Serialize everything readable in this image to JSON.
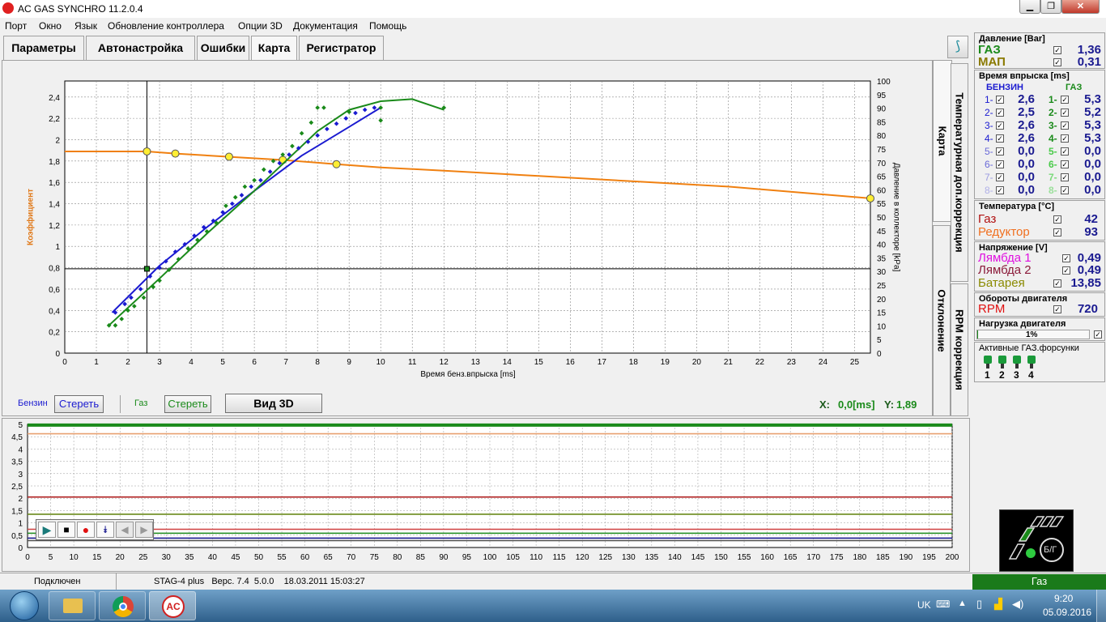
{
  "window": {
    "title": "AC GAS SYNCHRO  11.2.0.4"
  },
  "menu": [
    "Порт",
    "Окно",
    "Язык",
    "Обновление контроллера",
    "Опции 3D",
    "Документация",
    "Помощь"
  ],
  "tabs": [
    "Параметры",
    "Автонастройка",
    "Ошибки",
    "Карта",
    "Регистратор"
  ],
  "active_tab": "Карта",
  "vtabs": [
    "Карта",
    "Температурная доп.коррекция",
    "Отклонение",
    "RPM коррекция"
  ],
  "map_chart": {
    "left_ylabel": "Коэффициент",
    "right_ylabel": "Давление в коллекторе [kPa]",
    "xlabel": "Время бенз.впрыска [ms]",
    "x_ticks": [
      "0",
      "1",
      "2",
      "3",
      "4",
      "5",
      "6",
      "7",
      "8",
      "9",
      "10",
      "11",
      "12",
      "13",
      "14",
      "15",
      "16",
      "17",
      "18",
      "19",
      "20",
      "21",
      "22",
      "23",
      "24",
      "25"
    ],
    "y_ticks": [
      "0",
      "0,2",
      "0,4",
      "0,6",
      "0,8",
      "1",
      "1,2",
      "1,4",
      "1,6",
      "1,8",
      "2",
      "2,2",
      "2,4"
    ],
    "y2_ticks": [
      "0",
      "5",
      "10",
      "15",
      "20",
      "25",
      "30",
      "35",
      "40",
      "45",
      "50",
      "55",
      "60",
      "65",
      "70",
      "75",
      "80",
      "85",
      "90",
      "95",
      "100"
    ]
  },
  "chart_data": [
    {
      "type": "line",
      "xlabel": "Время бенз.впрыска [ms]",
      "ylabel": "Коэффициент",
      "y2label": "Давление в коллекторе [kPa]",
      "xlim": [
        0,
        25.5
      ],
      "ylim": [
        0,
        2.55
      ],
      "y2lim": [
        0,
        100
      ],
      "grid": true,
      "crosshair": {
        "x": 2.6,
        "y": 0.79
      },
      "series": [
        {
          "role": "coefficient",
          "color": "#f08010",
          "points": [
            [
              0,
              1.89
            ],
            [
              2.6,
              1.89
            ],
            [
              3.5,
              1.87
            ],
            [
              5.2,
              1.84
            ],
            [
              6.9,
              1.81
            ],
            [
              8.6,
              1.77
            ],
            [
              10,
              1.74
            ],
            [
              12,
              1.71
            ],
            [
              15,
              1.66
            ],
            [
              18,
              1.61
            ],
            [
              21,
              1.56
            ],
            [
              25.5,
              1.45
            ]
          ],
          "markers": [
            [
              2.6,
              1.89
            ],
            [
              3.5,
              1.87
            ],
            [
              5.2,
              1.84
            ],
            [
              6.9,
              1.81
            ],
            [
              8.6,
              1.77
            ],
            [
              25.5,
              1.45
            ]
          ]
        },
        {
          "role": "petrol-fit",
          "color": "#1a1ad0",
          "points": [
            [
              1.5,
              0.38
            ],
            [
              3,
              0.82
            ],
            [
              4.5,
              1.18
            ],
            [
              6,
              1.52
            ],
            [
              7.5,
              1.85
            ],
            [
              9,
              2.12
            ],
            [
              10,
              2.3
            ]
          ]
        },
        {
          "role": "gas-fit",
          "color": "#1a8a1a",
          "points": [
            [
              1.4,
              0.26
            ],
            [
              3,
              0.7
            ],
            [
              4.5,
              1.12
            ],
            [
              6,
              1.52
            ],
            [
              7,
              1.8
            ],
            [
              8,
              2.08
            ],
            [
              9,
              2.28
            ],
            [
              10,
              2.36
            ],
            [
              11,
              2.38
            ],
            [
              12,
              2.28
            ]
          ]
        },
        {
          "role": "petrol-points",
          "color": "#1a1ad0",
          "points": [
            [
              1.6,
              0.38
            ],
            [
              1.9,
              0.46
            ],
            [
              2.1,
              0.52
            ],
            [
              2.4,
              0.6
            ],
            [
              2.7,
              0.72
            ],
            [
              3,
              0.8
            ],
            [
              3.2,
              0.86
            ],
            [
              3.5,
              0.95
            ],
            [
              3.8,
              1.02
            ],
            [
              4.1,
              1.1
            ],
            [
              4.4,
              1.18
            ],
            [
              4.7,
              1.24
            ],
            [
              5,
              1.32
            ],
            [
              5.3,
              1.4
            ],
            [
              5.6,
              1.48
            ],
            [
              5.9,
              1.56
            ],
            [
              6.2,
              1.62
            ],
            [
              6.5,
              1.7
            ],
            [
              6.8,
              1.78
            ],
            [
              7.1,
              1.86
            ],
            [
              7.4,
              1.92
            ],
            [
              7.7,
              1.98
            ],
            [
              8,
              2.04
            ],
            [
              8.3,
              2.1
            ],
            [
              8.6,
              2.15
            ],
            [
              8.9,
              2.2
            ],
            [
              9.2,
              2.25
            ],
            [
              9.5,
              2.28
            ],
            [
              9.8,
              2.3
            ]
          ]
        },
        {
          "role": "gas-points",
          "color": "#1a8a1a",
          "points": [
            [
              1.4,
              0.26
            ],
            [
              1.6,
              0.26
            ],
            [
              1.8,
              0.32
            ],
            [
              2,
              0.4
            ],
            [
              2.2,
              0.44
            ],
            [
              2.5,
              0.52
            ],
            [
              2.8,
              0.62
            ],
            [
              3,
              0.68
            ],
            [
              3.3,
              0.78
            ],
            [
              3.6,
              0.88
            ],
            [
              3.9,
              0.98
            ],
            [
              4.2,
              1.06
            ],
            [
              4.5,
              1.14
            ],
            [
              4.8,
              1.22
            ],
            [
              5.1,
              1.38
            ],
            [
              5.4,
              1.46
            ],
            [
              5.7,
              1.56
            ],
            [
              6,
              1.62
            ],
            [
              6.3,
              1.72
            ],
            [
              6.6,
              1.8
            ],
            [
              6.9,
              1.86
            ],
            [
              7.2,
              1.94
            ],
            [
              7.5,
              2.06
            ],
            [
              7.8,
              2.16
            ],
            [
              8,
              2.3
            ],
            [
              8.2,
              2.3
            ],
            [
              9,
              2.26
            ],
            [
              10,
              2.3
            ],
            [
              10,
              2.18
            ],
            [
              12,
              2.3
            ]
          ]
        }
      ]
    },
    {
      "type": "line",
      "x_ticks": [
        "0",
        "5",
        "10",
        "15",
        "20",
        "25",
        "30",
        "35",
        "40",
        "45",
        "50",
        "55",
        "60",
        "65",
        "70",
        "75",
        "80",
        "85",
        "90",
        "95",
        "100",
        "105",
        "110",
        "115",
        "120",
        "125",
        "130",
        "135",
        "140",
        "145",
        "150",
        "155",
        "160",
        "165",
        "170",
        "175",
        "180",
        "185",
        "190",
        "195",
        "200"
      ],
      "y_ticks": [
        "0",
        "0,5",
        "1",
        "1,5",
        "2",
        "2,5",
        "3",
        "3,5",
        "4",
        "4,5",
        "5"
      ],
      "xlim": [
        0,
        200
      ],
      "ylim": [
        0,
        5
      ],
      "grid": true,
      "series": [
        {
          "color": "#1a8a1a",
          "values_level": 4.97
        },
        {
          "color": "#e8a070",
          "values_level": 4.62
        },
        {
          "color": "#b02020",
          "values_level": 2.05
        },
        {
          "color": "#6a8a1a",
          "values_level": 1.35
        },
        {
          "color": "#d04040",
          "values_level": 0.74
        },
        {
          "color": "#1a8a1a",
          "values_level": 0.58
        },
        {
          "color": "#1a1a90",
          "values_level": 0.38
        },
        {
          "color": "#505050",
          "values_level": 0.28
        }
      ]
    }
  ],
  "controls": {
    "petrol_label": "Бензин",
    "erase1": "Стереть",
    "gas_label": "Газ",
    "erase2": "Стереть",
    "view3d": "Вид 3D",
    "xy_x_label": "X:",
    "xy_x_value": "0,0[ms]",
    "xy_y_label": "Y:",
    "xy_y_value": "1,89"
  },
  "pressure": {
    "header": "Давление [Bar]",
    "gas_label": "ГАЗ",
    "gas_value": "1,36",
    "map_label": "МАП",
    "map_value": "0,31",
    "gas_color": "#1a8a1a",
    "map_color": "#8a7a00"
  },
  "injection": {
    "header": "Время впрыска [ms]",
    "petrol_header": "БЕНЗИН",
    "gas_header": "ГАЗ",
    "rows": [
      {
        "n": "1-",
        "petrol": "2,6",
        "gn": "1-",
        "gas": "5,3"
      },
      {
        "n": "2-",
        "petrol": "2,5",
        "gn": "2-",
        "gas": "5,2"
      },
      {
        "n": "3-",
        "petrol": "2,6",
        "gn": "3-",
        "gas": "5,3"
      },
      {
        "n": "4-",
        "petrol": "2,6",
        "gn": "4-",
        "gas": "5,3"
      },
      {
        "n": "5-",
        "petrol": "0,0",
        "gn": "5-",
        "gas": "0,0"
      },
      {
        "n": "6-",
        "petrol": "0,0",
        "gn": "6-",
        "gas": "0,0"
      },
      {
        "n": "7-",
        "petrol": "0,0",
        "gn": "7-",
        "gas": "0,0"
      },
      {
        "n": "8-",
        "petrol": "0,0",
        "gn": "8-",
        "gas": "0,0"
      }
    ]
  },
  "temperature": {
    "header": "Температура  [°C]",
    "gas_label": "Газ",
    "gas_value": "42",
    "reducer_label": "Редуктор",
    "reducer_value": "93"
  },
  "voltage": {
    "header": "Напряжение [V]",
    "l1_label": "Лямбда 1",
    "l1_value": "0,49",
    "l2_label": "Лямбда 2",
    "l2_value": "0,49",
    "bat_label": "Батарея",
    "bat_value": "13,85"
  },
  "rpm": {
    "header": "Обороты двигателя",
    "label": "RPM",
    "value": "720"
  },
  "load": {
    "header": "Нагрузка двигателя",
    "value": "1%",
    "fraction": 0.01
  },
  "active_injectors": {
    "header": "Активные ГАЗ.форсунки",
    "labels": [
      "1",
      "2",
      "3",
      "4"
    ]
  },
  "status": {
    "connected": "Подключен",
    "device": "STAG-4 plus   Верс. 7.4  5.0.0    18.03.2011 15:03:27",
    "fuel_mode": "Газ",
    "switch_label": "Б/Г"
  },
  "taskbar": {
    "lang": "UK",
    "time": "9:20",
    "date": "05.09.2016"
  }
}
